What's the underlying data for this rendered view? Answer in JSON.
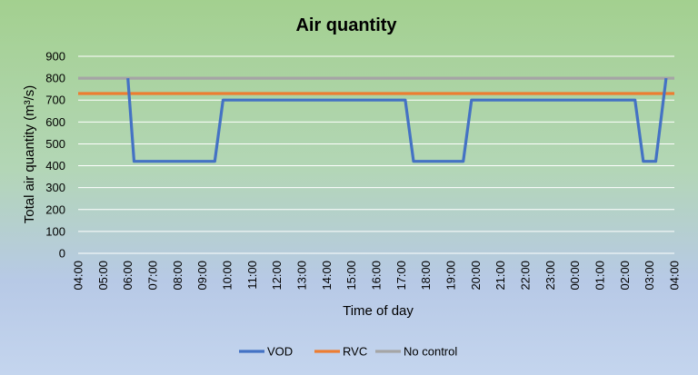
{
  "chart_data": {
    "type": "line",
    "title": "Air quantity",
    "xlabel": "Time of day",
    "ylabel": "Total air quantity (m³/s)",
    "ylim": [
      0,
      900
    ],
    "yticks": [
      0,
      100,
      200,
      300,
      400,
      500,
      600,
      700,
      800,
      900
    ],
    "grid": true,
    "legend_position": "bottom",
    "categories": [
      "04:00",
      "05:00",
      "06:00",
      "07:00",
      "08:00",
      "09:00",
      "10:00",
      "11:00",
      "12:00",
      "13:00",
      "14:00",
      "15:00",
      "16:00",
      "17:00",
      "18:00",
      "19:00",
      "20:00",
      "21:00",
      "22:00",
      "23:00",
      "00:00",
      "01:00",
      "02:00",
      "03:00",
      "04:00"
    ],
    "series": [
      {
        "name": "VOD",
        "color": "#4472c4",
        "points": [
          {
            "x": "06:00",
            "y": 800
          },
          {
            "x": "06:15",
            "y": 420
          },
          {
            "x": "09:30",
            "y": 420
          },
          {
            "x": "09:50",
            "y": 700
          },
          {
            "x": "17:10",
            "y": 700
          },
          {
            "x": "17:30",
            "y": 420
          },
          {
            "x": "19:30",
            "y": 420
          },
          {
            "x": "19:50",
            "y": 700
          },
          {
            "x": "02:25",
            "y": 700
          },
          {
            "x": "02:45",
            "y": 420
          },
          {
            "x": "03:15",
            "y": 420
          },
          {
            "x": "03:40",
            "y": 800
          }
        ]
      },
      {
        "name": "RVC",
        "color": "#ed7d31",
        "points": [
          {
            "x": "04:00",
            "y": 730
          },
          {
            "x": "04:00",
            "y": 730
          }
        ]
      },
      {
        "name": "No control",
        "color": "#a5a5a5",
        "points": [
          {
            "x": "04:00",
            "y": 800
          },
          {
            "x": "04:00",
            "y": 800
          }
        ]
      }
    ]
  }
}
